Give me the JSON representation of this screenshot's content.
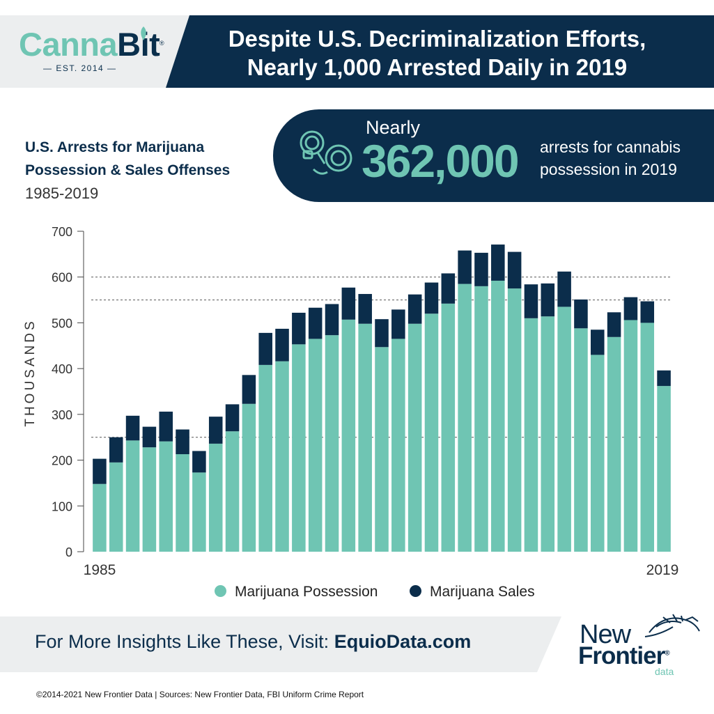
{
  "brand": {
    "name_part1": "Canna",
    "name_part2": "Bit",
    "reg": "®",
    "est": "— EST. 2014 —"
  },
  "header": {
    "line1": "Despite U.S. Decriminalization Efforts,",
    "line2": "Nearly 1,000 Arrested Daily in 2019"
  },
  "subtitle": {
    "line1": "U.S. Arrests for Marijuana",
    "line2": "Possession & Sales Offenses",
    "years": "1985-2019"
  },
  "stat": {
    "prefix": "Nearly",
    "value": "362,000",
    "desc1": "arrests for cannabis",
    "desc2": "possession in 2019",
    "icon": "handcuffs-icon"
  },
  "chart_data": {
    "type": "bar",
    "stacked": true,
    "ylabel": "THOUSANDS",
    "ylim": [
      0,
      700
    ],
    "yticks": [
      "0",
      "100",
      "200",
      "300",
      "400",
      "500",
      "600",
      "700"
    ],
    "x_labels": [
      "1985",
      "2019"
    ],
    "categories": [
      "1985",
      "1986",
      "1987",
      "1988",
      "1989",
      "1990",
      "1991",
      "1992",
      "1993",
      "1994",
      "1995",
      "1996",
      "1997",
      "1998",
      "1999",
      "2000",
      "2001",
      "2002",
      "2003",
      "2004",
      "2005",
      "2006",
      "2007",
      "2008",
      "2009",
      "2010",
      "2011",
      "2012",
      "2013",
      "2014",
      "2015",
      "2016",
      "2017",
      "2018",
      "2019"
    ],
    "reference_lines": [
      600,
      550,
      250
    ],
    "series": [
      {
        "name": "Marijuana Possession",
        "color": "#6fc5b3",
        "values": [
          148,
          195,
          243,
          228,
          241,
          213,
          173,
          236,
          263,
          323,
          408,
          416,
          453,
          465,
          473,
          507,
          498,
          447,
          465,
          498,
          520,
          542,
          585,
          580,
          592,
          575,
          510,
          514,
          535,
          488,
          430,
          469,
          506,
          500,
          362
        ]
      },
      {
        "name": "Marijuana Sales",
        "color": "#0b2d4b",
        "values": [
          55,
          55,
          54,
          45,
          65,
          54,
          47,
          59,
          59,
          63,
          70,
          71,
          69,
          68,
          68,
          70,
          65,
          61,
          64,
          64,
          68,
          66,
          73,
          73,
          79,
          80,
          74,
          72,
          77,
          63,
          55,
          54,
          50,
          47,
          34
        ]
      }
    ]
  },
  "legend": {
    "possession": "Marijuana Possession",
    "sales": "Marijuana Sales"
  },
  "footer": {
    "cta_prefix": "For More Insights Like These, Visit: ",
    "cta_link": "EquioData.com",
    "copyright": "©2014-2021  New Frontier Data | Sources: New Frontier Data, FBI Uniform Crime Report"
  },
  "nfd_logo": {
    "word1": "New",
    "word2": "Frontier",
    "reg": "®",
    "word3": "data"
  }
}
